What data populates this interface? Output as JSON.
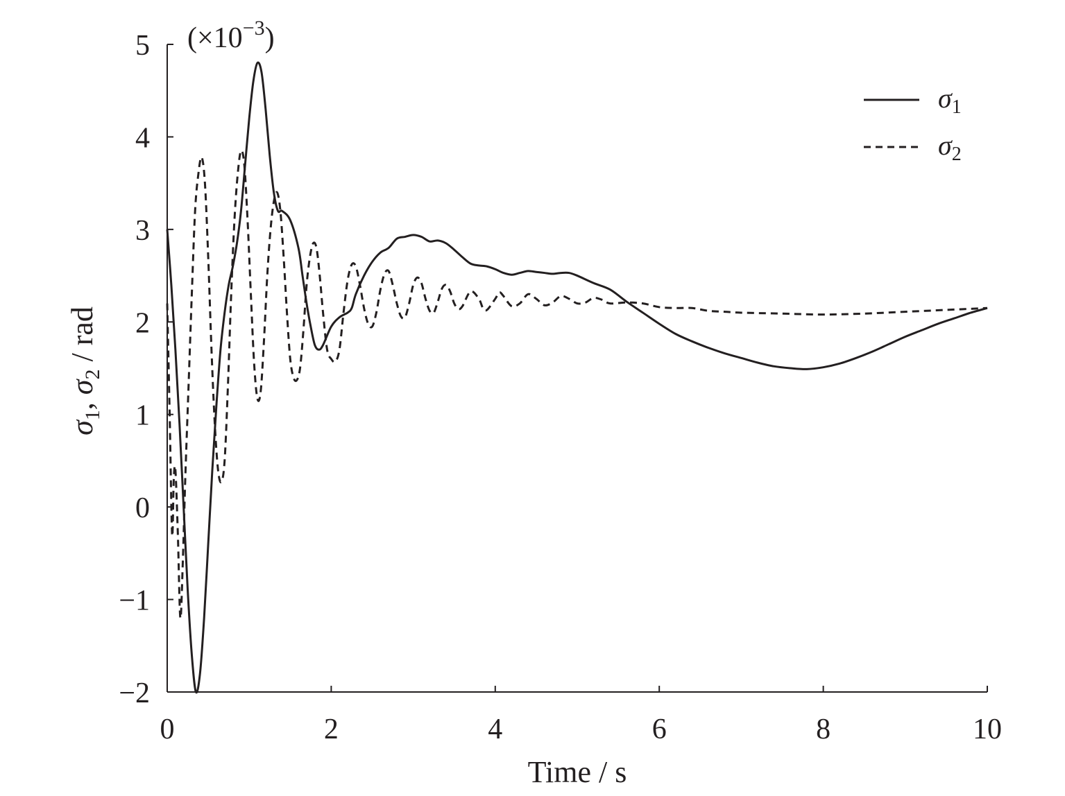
{
  "chart_data": {
    "type": "line",
    "title": "",
    "xlabel": "Time / s",
    "ylabel": {
      "sym1": "σ",
      "sub1": "1",
      "sep": ", ",
      "sym2": "σ",
      "sub2": "2",
      "unit": " / rad"
    },
    "y_scale_note": {
      "base": "(×10",
      "exp": "−3",
      "close": ")"
    },
    "xlim": [
      0,
      10
    ],
    "ylim": [
      -2,
      5
    ],
    "x_ticks": [
      0,
      2,
      4,
      6,
      8,
      10
    ],
    "x_tick_labels": [
      "0",
      "2",
      "4",
      "6",
      "8",
      "10"
    ],
    "y_ticks": [
      -2,
      -1,
      0,
      1,
      2,
      3,
      4,
      5
    ],
    "y_tick_labels": [
      "−2",
      "−1",
      "0",
      "1",
      "2",
      "3",
      "4",
      "5"
    ],
    "grid": false,
    "legend_position": "top-right",
    "series": [
      {
        "name": "σ1",
        "legend_symbol": "σ",
        "legend_sub": "1",
        "style": "solid",
        "color": "#231f20",
        "points": [
          [
            0,
            3.0
          ],
          [
            0.05,
            2.4
          ],
          [
            0.1,
            1.7
          ],
          [
            0.15,
            0.9
          ],
          [
            0.2,
            0.0
          ],
          [
            0.25,
            -0.9
          ],
          [
            0.3,
            -1.6
          ],
          [
            0.35,
            -2.0
          ],
          [
            0.4,
            -1.8
          ],
          [
            0.45,
            -1.2
          ],
          [
            0.5,
            -0.4
          ],
          [
            0.55,
            0.4
          ],
          [
            0.6,
            1.1
          ],
          [
            0.65,
            1.7
          ],
          [
            0.7,
            2.1
          ],
          [
            0.75,
            2.4
          ],
          [
            0.8,
            2.6
          ],
          [
            0.85,
            2.85
          ],
          [
            0.9,
            3.2
          ],
          [
            0.95,
            3.7
          ],
          [
            1.0,
            4.2
          ],
          [
            1.05,
            4.6
          ],
          [
            1.1,
            4.8
          ],
          [
            1.15,
            4.7
          ],
          [
            1.2,
            4.3
          ],
          [
            1.25,
            3.8
          ],
          [
            1.3,
            3.4
          ],
          [
            1.35,
            3.2
          ],
          [
            1.4,
            3.2
          ],
          [
            1.5,
            3.1
          ],
          [
            1.6,
            2.8
          ],
          [
            1.65,
            2.5
          ],
          [
            1.7,
            2.2
          ],
          [
            1.75,
            1.95
          ],
          [
            1.8,
            1.75
          ],
          [
            1.85,
            1.7
          ],
          [
            1.9,
            1.75
          ],
          [
            2.0,
            1.95
          ],
          [
            2.1,
            2.05
          ],
          [
            2.2,
            2.1
          ],
          [
            2.25,
            2.15
          ],
          [
            2.3,
            2.3
          ],
          [
            2.4,
            2.5
          ],
          [
            2.5,
            2.65
          ],
          [
            2.6,
            2.75
          ],
          [
            2.7,
            2.8
          ],
          [
            2.8,
            2.9
          ],
          [
            2.9,
            2.92
          ],
          [
            3.0,
            2.94
          ],
          [
            3.1,
            2.92
          ],
          [
            3.2,
            2.87
          ],
          [
            3.3,
            2.88
          ],
          [
            3.4,
            2.85
          ],
          [
            3.5,
            2.78
          ],
          [
            3.6,
            2.7
          ],
          [
            3.7,
            2.63
          ],
          [
            3.8,
            2.61
          ],
          [
            3.9,
            2.6
          ],
          [
            4.0,
            2.57
          ],
          [
            4.1,
            2.53
          ],
          [
            4.2,
            2.51
          ],
          [
            4.3,
            2.53
          ],
          [
            4.4,
            2.55
          ],
          [
            4.5,
            2.54
          ],
          [
            4.6,
            2.53
          ],
          [
            4.7,
            2.52
          ],
          [
            4.8,
            2.53
          ],
          [
            4.9,
            2.53
          ],
          [
            5.0,
            2.5
          ],
          [
            5.2,
            2.42
          ],
          [
            5.4,
            2.35
          ],
          [
            5.6,
            2.22
          ],
          [
            5.8,
            2.1
          ],
          [
            6.0,
            1.98
          ],
          [
            6.2,
            1.87
          ],
          [
            6.4,
            1.79
          ],
          [
            6.6,
            1.72
          ],
          [
            6.8,
            1.66
          ],
          [
            7.0,
            1.61
          ],
          [
            7.2,
            1.56
          ],
          [
            7.4,
            1.52
          ],
          [
            7.6,
            1.5
          ],
          [
            7.8,
            1.49
          ],
          [
            8.0,
            1.51
          ],
          [
            8.2,
            1.55
          ],
          [
            8.4,
            1.61
          ],
          [
            8.6,
            1.68
          ],
          [
            8.8,
            1.76
          ],
          [
            9.0,
            1.84
          ],
          [
            9.2,
            1.91
          ],
          [
            9.4,
            1.98
          ],
          [
            9.6,
            2.04
          ],
          [
            9.8,
            2.1
          ],
          [
            10.0,
            2.15
          ]
        ]
      },
      {
        "name": "σ2",
        "legend_symbol": "σ",
        "legend_sub": "2",
        "style": "dashed",
        "color": "#231f20",
        "points": [
          [
            0,
            2.2
          ],
          [
            0.03,
            1.0
          ],
          [
            0.06,
            -0.3
          ],
          [
            0.08,
            0.3
          ],
          [
            0.1,
            0.4
          ],
          [
            0.13,
            -0.3
          ],
          [
            0.16,
            -1.2
          ],
          [
            0.19,
            -0.6
          ],
          [
            0.22,
            0.3
          ],
          [
            0.26,
            1.3
          ],
          [
            0.3,
            2.3
          ],
          [
            0.34,
            3.2
          ],
          [
            0.38,
            3.6
          ],
          [
            0.42,
            3.78
          ],
          [
            0.46,
            3.5
          ],
          [
            0.5,
            2.7
          ],
          [
            0.54,
            1.7
          ],
          [
            0.58,
            0.9
          ],
          [
            0.62,
            0.4
          ],
          [
            0.66,
            0.27
          ],
          [
            0.7,
            0.5
          ],
          [
            0.74,
            1.3
          ],
          [
            0.78,
            2.3
          ],
          [
            0.82,
            3.1
          ],
          [
            0.86,
            3.6
          ],
          [
            0.9,
            3.85
          ],
          [
            0.94,
            3.7
          ],
          [
            0.98,
            3.1
          ],
          [
            1.02,
            2.3
          ],
          [
            1.06,
            1.55
          ],
          [
            1.1,
            1.17
          ],
          [
            1.14,
            1.25
          ],
          [
            1.18,
            1.8
          ],
          [
            1.22,
            2.5
          ],
          [
            1.26,
            3.0
          ],
          [
            1.3,
            3.3
          ],
          [
            1.34,
            3.4
          ],
          [
            1.38,
            3.2
          ],
          [
            1.42,
            2.7
          ],
          [
            1.46,
            2.1
          ],
          [
            1.5,
            1.6
          ],
          [
            1.54,
            1.4
          ],
          [
            1.58,
            1.37
          ],
          [
            1.62,
            1.5
          ],
          [
            1.66,
            1.9
          ],
          [
            1.7,
            2.4
          ],
          [
            1.74,
            2.7
          ],
          [
            1.78,
            2.85
          ],
          [
            1.82,
            2.8
          ],
          [
            1.86,
            2.5
          ],
          [
            1.9,
            2.1
          ],
          [
            1.95,
            1.7
          ],
          [
            2.0,
            1.6
          ],
          [
            2.05,
            1.57
          ],
          [
            2.1,
            1.7
          ],
          [
            2.15,
            2.1
          ],
          [
            2.2,
            2.45
          ],
          [
            2.25,
            2.62
          ],
          [
            2.3,
            2.6
          ],
          [
            2.35,
            2.4
          ],
          [
            2.4,
            2.15
          ],
          [
            2.45,
            1.98
          ],
          [
            2.5,
            1.95
          ],
          [
            2.55,
            2.1
          ],
          [
            2.6,
            2.35
          ],
          [
            2.65,
            2.52
          ],
          [
            2.7,
            2.55
          ],
          [
            2.75,
            2.4
          ],
          [
            2.8,
            2.2
          ],
          [
            2.85,
            2.06
          ],
          [
            2.9,
            2.05
          ],
          [
            2.95,
            2.2
          ],
          [
            3.0,
            2.4
          ],
          [
            3.05,
            2.48
          ],
          [
            3.1,
            2.42
          ],
          [
            3.15,
            2.25
          ],
          [
            3.2,
            2.12
          ],
          [
            3.25,
            2.1
          ],
          [
            3.3,
            2.22
          ],
          [
            3.35,
            2.36
          ],
          [
            3.4,
            2.4
          ],
          [
            3.45,
            2.33
          ],
          [
            3.5,
            2.2
          ],
          [
            3.55,
            2.14
          ],
          [
            3.6,
            2.17
          ],
          [
            3.7,
            2.33
          ],
          [
            3.8,
            2.25
          ],
          [
            3.85,
            2.15
          ],
          [
            3.9,
            2.13
          ],
          [
            4.0,
            2.25
          ],
          [
            4.05,
            2.32
          ],
          [
            4.1,
            2.28
          ],
          [
            4.2,
            2.17
          ],
          [
            4.3,
            2.2
          ],
          [
            4.4,
            2.3
          ],
          [
            4.5,
            2.25
          ],
          [
            4.6,
            2.18
          ],
          [
            4.7,
            2.21
          ],
          [
            4.8,
            2.28
          ],
          [
            4.9,
            2.25
          ],
          [
            5.0,
            2.2
          ],
          [
            5.1,
            2.21
          ],
          [
            5.2,
            2.26
          ],
          [
            5.3,
            2.24
          ],
          [
            5.4,
            2.2
          ],
          [
            5.6,
            2.21
          ],
          [
            5.8,
            2.2
          ],
          [
            6.0,
            2.16
          ],
          [
            6.2,
            2.15
          ],
          [
            6.4,
            2.15
          ],
          [
            6.6,
            2.12
          ],
          [
            6.8,
            2.11
          ],
          [
            7.0,
            2.1
          ],
          [
            7.5,
            2.09
          ],
          [
            8.0,
            2.08
          ],
          [
            8.5,
            2.09
          ],
          [
            9.0,
            2.11
          ],
          [
            9.5,
            2.13
          ],
          [
            10.0,
            2.15
          ]
        ]
      }
    ]
  }
}
